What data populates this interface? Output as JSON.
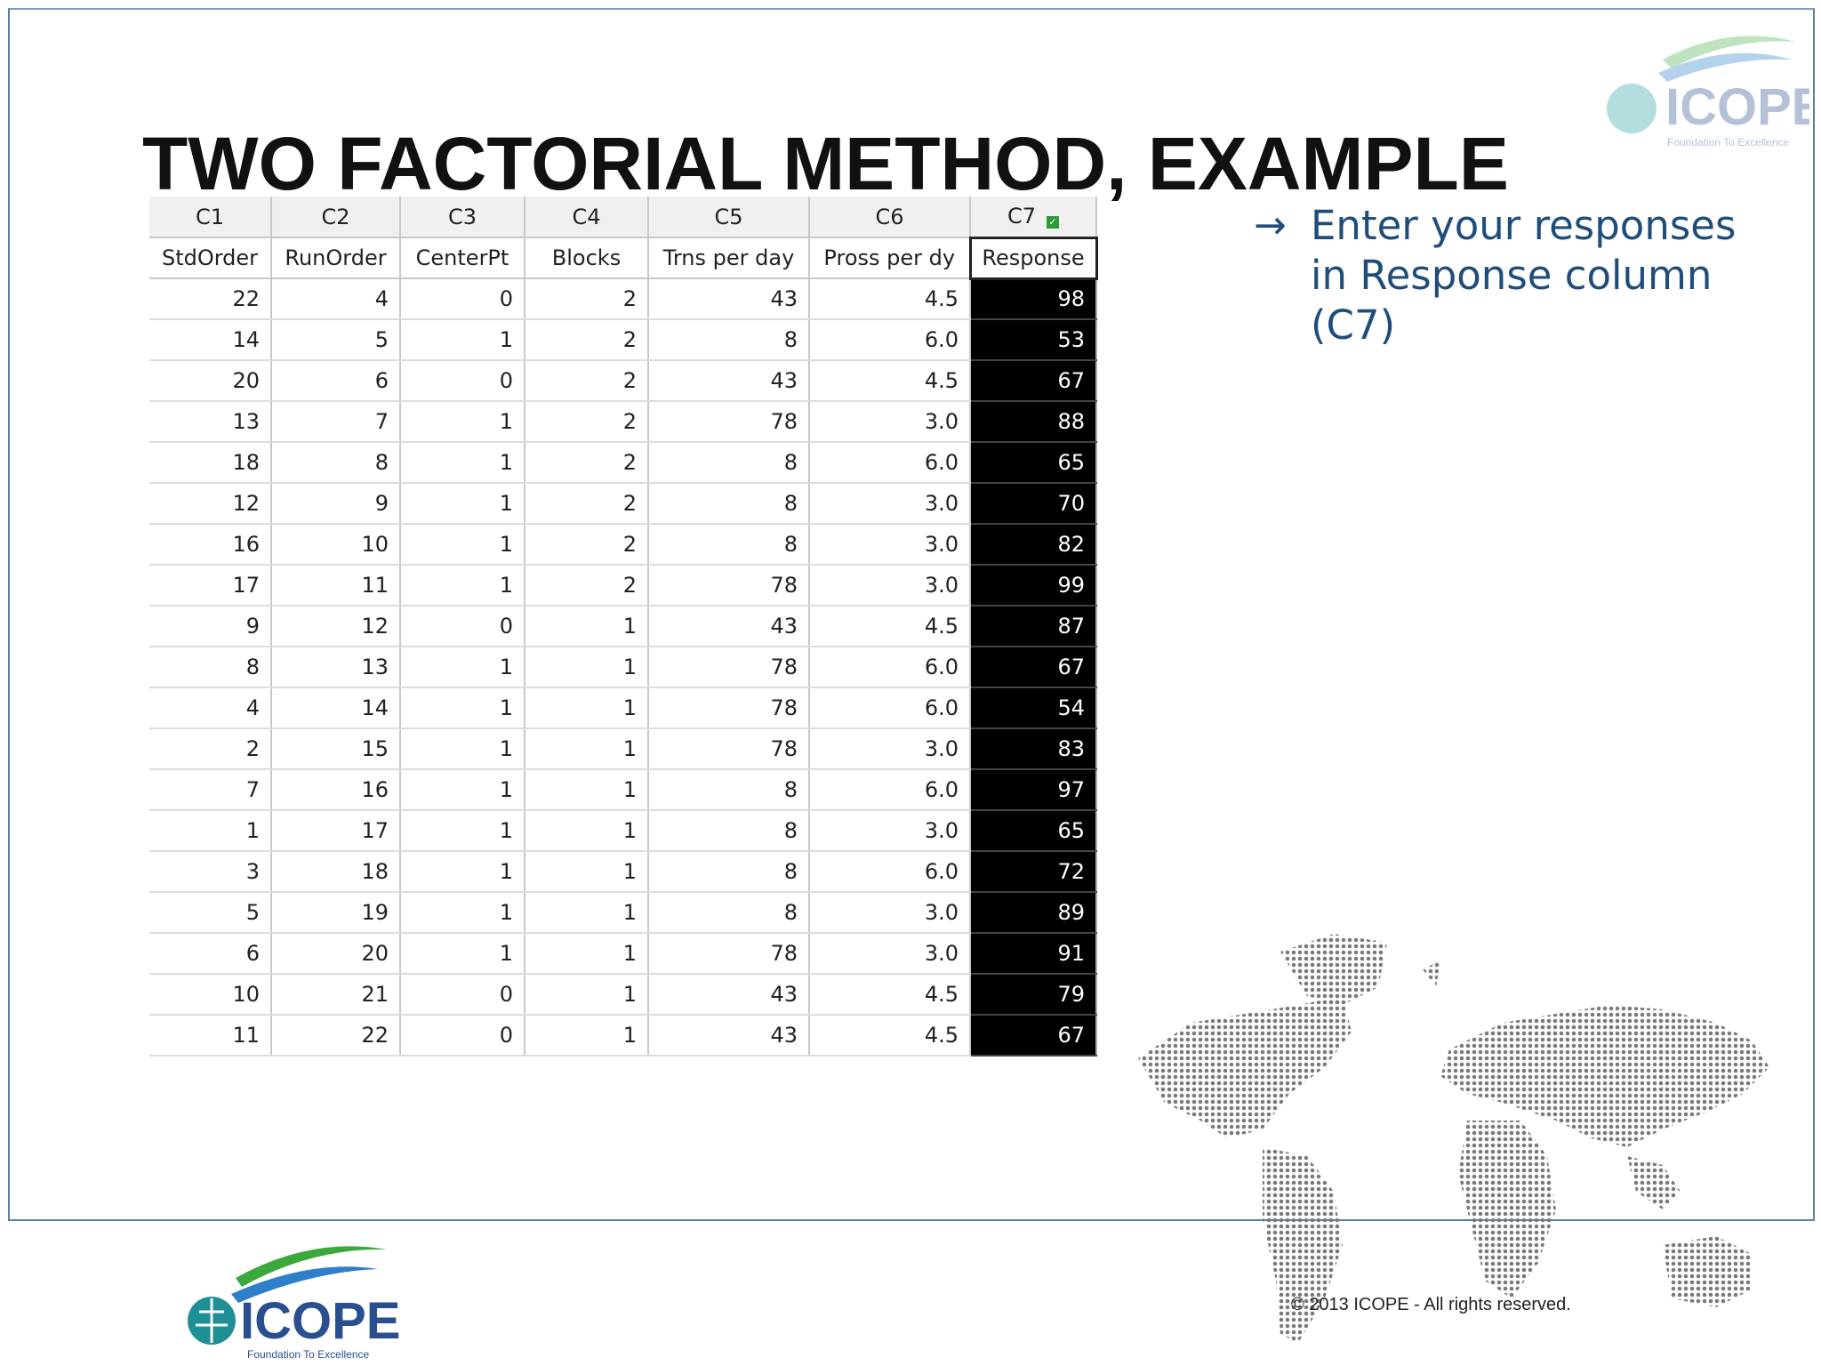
{
  "slide": {
    "title": "TWO FACTORIAL METHOD, EXAMPLE",
    "bullet_arrow": "→",
    "bullet_text": "Enter your responses in Response column (C7)",
    "copyright": "©  2013 ICOPE - All rights reserved."
  },
  "logos": {
    "top_right": {
      "name": "ICOPE",
      "tagline": "Foundation To Excellence"
    },
    "bottom_left": {
      "name": "ICOPE",
      "tagline": "Foundation To Excellence"
    }
  },
  "worksheet": {
    "column_ids": [
      "C1",
      "C2",
      "C3",
      "C4",
      "C5",
      "C6",
      "C7"
    ],
    "column_names": [
      "StdOrder",
      "RunOrder",
      "CenterPt",
      "Blocks",
      "Trns per day",
      "Pross per dy",
      "Response"
    ],
    "rows": [
      [
        "22",
        "4",
        "0",
        "2",
        "43",
        "4.5",
        "98"
      ],
      [
        "14",
        "5",
        "1",
        "2",
        "8",
        "6.0",
        "53"
      ],
      [
        "20",
        "6",
        "0",
        "2",
        "43",
        "4.5",
        "67"
      ],
      [
        "13",
        "7",
        "1",
        "2",
        "78",
        "3.0",
        "88"
      ],
      [
        "18",
        "8",
        "1",
        "2",
        "8",
        "6.0",
        "65"
      ],
      [
        "12",
        "9",
        "1",
        "2",
        "8",
        "3.0",
        "70"
      ],
      [
        "16",
        "10",
        "1",
        "2",
        "8",
        "3.0",
        "82"
      ],
      [
        "17",
        "11",
        "1",
        "2",
        "78",
        "3.0",
        "99"
      ],
      [
        "9",
        "12",
        "0",
        "1",
        "43",
        "4.5",
        "87"
      ],
      [
        "8",
        "13",
        "1",
        "1",
        "78",
        "6.0",
        "67"
      ],
      [
        "4",
        "14",
        "1",
        "1",
        "78",
        "6.0",
        "54"
      ],
      [
        "2",
        "15",
        "1",
        "1",
        "78",
        "3.0",
        "83"
      ],
      [
        "7",
        "16",
        "1",
        "1",
        "8",
        "6.0",
        "97"
      ],
      [
        "1",
        "17",
        "1",
        "1",
        "8",
        "3.0",
        "65"
      ],
      [
        "3",
        "18",
        "1",
        "1",
        "8",
        "6.0",
        "72"
      ],
      [
        "5",
        "19",
        "1",
        "1",
        "8",
        "3.0",
        "89"
      ],
      [
        "6",
        "20",
        "1",
        "1",
        "78",
        "3.0",
        "91"
      ],
      [
        "10",
        "21",
        "0",
        "1",
        "43",
        "4.5",
        "79"
      ],
      [
        "11",
        "22",
        "0",
        "1",
        "43",
        "4.5",
        "67"
      ]
    ],
    "selected_column_indicator_icon": "checkmark-icon",
    "colors": {
      "selected_bg": "#000000",
      "selected_text": "#ffffff",
      "accent": "#1f4d7a"
    }
  }
}
